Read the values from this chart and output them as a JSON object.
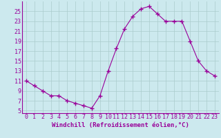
{
  "x": [
    0,
    1,
    2,
    3,
    4,
    5,
    6,
    7,
    8,
    9,
    10,
    11,
    12,
    13,
    14,
    15,
    16,
    17,
    18,
    19,
    20,
    21,
    22,
    23
  ],
  "y": [
    11,
    10,
    9,
    8,
    8,
    7,
    6.5,
    6,
    5.5,
    8,
    13,
    17.5,
    21.5,
    24,
    25.5,
    26,
    24.5,
    23,
    23,
    23,
    19,
    15,
    13,
    12
  ],
  "line_color": "#990099",
  "marker": "+",
  "marker_size": 4,
  "background_color": "#cce9ee",
  "grid_color": "#aacccc",
  "xlabel": "Windchill (Refroidissement éolien,°C)",
  "xlabel_fontsize": 6.5,
  "tick_color": "#990099",
  "tick_fontsize": 6,
  "yticks": [
    5,
    7,
    9,
    11,
    13,
    15,
    17,
    19,
    21,
    23,
    25
  ],
  "ylim": [
    4.5,
    27
  ],
  "xlim": [
    -0.5,
    23.5
  ]
}
